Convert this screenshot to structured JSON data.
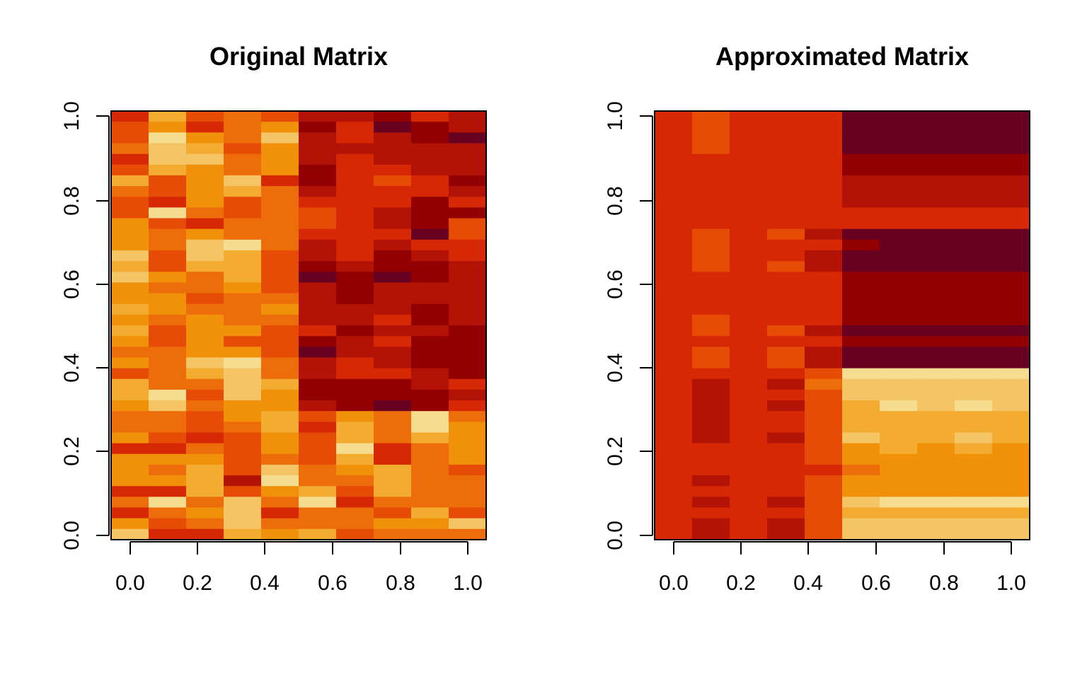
{
  "chart_data": [
    {
      "type": "heatmap",
      "title": "Original Matrix",
      "xlabel": "",
      "ylabel": "",
      "x_ticks": [
        "0.0",
        "0.2",
        "0.4",
        "0.6",
        "0.8",
        "1.0"
      ],
      "y_ticks": [
        "0.0",
        "0.2",
        "0.4",
        "0.6",
        "0.8",
        "1.0"
      ],
      "xlim": [
        0,
        1
      ],
      "ylim": [
        0,
        1
      ],
      "n_cols": 10,
      "n_rows": 40,
      "row_order": "top-to-bottom",
      "value_scale": "0 = darkest red, 9 = lightest yellow (heat.colors)",
      "matrix": [
        [
          3,
          7,
          4,
          5,
          4,
          2,
          2,
          1,
          3,
          2
        ],
        [
          4,
          6,
          3,
          5,
          6,
          1,
          3,
          0,
          1,
          2
        ],
        [
          4,
          9,
          6,
          5,
          8,
          2,
          3,
          2,
          1,
          0
        ],
        [
          5,
          8,
          7,
          4,
          6,
          2,
          2,
          2,
          2,
          2
        ],
        [
          3,
          8,
          8,
          5,
          6,
          2,
          3,
          2,
          2,
          2
        ],
        [
          4,
          7,
          6,
          5,
          6,
          1,
          3,
          3,
          2,
          2
        ],
        [
          7,
          4,
          6,
          8,
          3,
          1,
          3,
          4,
          3,
          1
        ],
        [
          5,
          4,
          6,
          7,
          5,
          2,
          3,
          3,
          3,
          2
        ],
        [
          4,
          3,
          6,
          4,
          5,
          3,
          3,
          3,
          1,
          3
        ],
        [
          4,
          9,
          5,
          4,
          5,
          4,
          3,
          2,
          1,
          1
        ],
        [
          6,
          4,
          3,
          5,
          5,
          4,
          3,
          2,
          1,
          4
        ],
        [
          6,
          5,
          6,
          5,
          5,
          3,
          3,
          3,
          0,
          4
        ],
        [
          6,
          5,
          8,
          9,
          5,
          2,
          3,
          2,
          3,
          3
        ],
        [
          8,
          4,
          8,
          7,
          4,
          2,
          3,
          1,
          2,
          3
        ],
        [
          7,
          4,
          7,
          7,
          4,
          1,
          2,
          1,
          1,
          2
        ],
        [
          8,
          6,
          5,
          7,
          4,
          0,
          1,
          0,
          1,
          2
        ],
        [
          6,
          5,
          5,
          6,
          4,
          2,
          1,
          2,
          2,
          2
        ],
        [
          6,
          6,
          4,
          5,
          5,
          2,
          1,
          2,
          2,
          2
        ],
        [
          7,
          6,
          5,
          5,
          6,
          2,
          2,
          2,
          1,
          2
        ],
        [
          6,
          5,
          6,
          5,
          5,
          2,
          2,
          3,
          1,
          2
        ],
        [
          7,
          4,
          6,
          6,
          4,
          3,
          1,
          2,
          2,
          1
        ],
        [
          6,
          4,
          6,
          4,
          4,
          1,
          2,
          3,
          1,
          1
        ],
        [
          5,
          5,
          6,
          6,
          4,
          0,
          2,
          2,
          1,
          1
        ],
        [
          6,
          5,
          8,
          9,
          5,
          2,
          3,
          2,
          1,
          1
        ],
        [
          4,
          5,
          7,
          8,
          5,
          2,
          3,
          3,
          2,
          1
        ],
        [
          7,
          5,
          5,
          8,
          7,
          1,
          1,
          1,
          2,
          3
        ],
        [
          7,
          9,
          4,
          8,
          6,
          1,
          1,
          1,
          1,
          2
        ],
        [
          6,
          8,
          5,
          6,
          6,
          2,
          1,
          0,
          1,
          3
        ],
        [
          5,
          5,
          4,
          6,
          7,
          4,
          6,
          5,
          9,
          5
        ],
        [
          5,
          5,
          4,
          5,
          7,
          3,
          7,
          5,
          9,
          6
        ],
        [
          6,
          4,
          3,
          4,
          6,
          4,
          7,
          5,
          7,
          6
        ],
        [
          3,
          3,
          5,
          4,
          6,
          4,
          9,
          3,
          5,
          6
        ],
        [
          6,
          6,
          6,
          4,
          5,
          4,
          7,
          3,
          5,
          6
        ],
        [
          6,
          5,
          7,
          4,
          8,
          5,
          6,
          7,
          5,
          4
        ],
        [
          6,
          6,
          7,
          2,
          9,
          5,
          5,
          7,
          5,
          5
        ],
        [
          3,
          3,
          7,
          4,
          6,
          7,
          4,
          7,
          5,
          5
        ],
        [
          5,
          9,
          5,
          8,
          5,
          9,
          3,
          5,
          5,
          5
        ],
        [
          3,
          5,
          6,
          8,
          3,
          5,
          5,
          4,
          7,
          4
        ],
        [
          6,
          4,
          5,
          8,
          5,
          5,
          5,
          6,
          6,
          8
        ],
        [
          8,
          3,
          3,
          7,
          6,
          7,
          4,
          5,
          5,
          5
        ]
      ]
    },
    {
      "type": "heatmap",
      "title": "Approximated Matrix",
      "xlabel": "",
      "ylabel": "",
      "x_ticks": [
        "0.0",
        "0.2",
        "0.4",
        "0.6",
        "0.8",
        "1.0"
      ],
      "y_ticks": [
        "0.0",
        "0.2",
        "0.4",
        "0.6",
        "0.8",
        "1.0"
      ],
      "xlim": [
        0,
        1
      ],
      "ylim": [
        0,
        1
      ],
      "n_cols": 10,
      "n_rows": 40,
      "row_order": "top-to-bottom",
      "value_scale": "0 = darkest red, 9 = lightest yellow (heat.colors)",
      "matrix": [
        [
          3,
          4,
          3,
          3,
          3,
          0,
          0,
          0,
          0,
          0
        ],
        [
          3,
          4,
          3,
          3,
          3,
          0,
          0,
          0,
          0,
          0
        ],
        [
          3,
          4,
          3,
          3,
          3,
          0,
          0,
          0,
          0,
          0
        ],
        [
          3,
          4,
          3,
          3,
          3,
          0,
          0,
          0,
          0,
          0
        ],
        [
          3,
          3,
          3,
          3,
          3,
          1,
          1,
          1,
          1,
          1
        ],
        [
          3,
          3,
          3,
          3,
          3,
          1,
          1,
          1,
          1,
          1
        ],
        [
          3,
          3,
          3,
          3,
          3,
          2,
          2,
          2,
          2,
          2
        ],
        [
          3,
          3,
          3,
          3,
          3,
          2,
          2,
          2,
          2,
          2
        ],
        [
          3,
          3,
          3,
          3,
          3,
          2,
          2,
          2,
          2,
          2
        ],
        [
          3,
          3,
          3,
          3,
          3,
          3,
          3,
          3,
          3,
          3
        ],
        [
          3,
          3,
          3,
          3,
          3,
          3,
          3,
          3,
          3,
          3
        ],
        [
          3,
          4,
          3,
          4,
          2,
          0,
          0,
          0,
          0,
          0
        ],
        [
          3,
          4,
          3,
          3,
          3,
          1,
          0,
          0,
          0,
          0
        ],
        [
          3,
          4,
          3,
          3,
          2,
          0,
          0,
          0,
          0,
          0
        ],
        [
          3,
          4,
          3,
          4,
          2,
          0,
          0,
          0,
          0,
          0
        ],
        [
          3,
          3,
          3,
          3,
          3,
          1,
          1,
          1,
          1,
          1
        ],
        [
          3,
          3,
          3,
          3,
          3,
          1,
          1,
          1,
          1,
          1
        ],
        [
          3,
          3,
          3,
          3,
          3,
          1,
          1,
          1,
          1,
          1
        ],
        [
          3,
          3,
          3,
          3,
          3,
          1,
          1,
          1,
          1,
          1
        ],
        [
          3,
          4,
          3,
          3,
          3,
          1,
          1,
          1,
          1,
          1
        ],
        [
          3,
          4,
          3,
          4,
          2,
          0,
          0,
          0,
          0,
          0
        ],
        [
          3,
          3,
          3,
          3,
          3,
          1,
          1,
          1,
          1,
          1
        ],
        [
          3,
          4,
          3,
          4,
          2,
          0,
          0,
          0,
          0,
          0
        ],
        [
          3,
          4,
          3,
          4,
          2,
          0,
          0,
          0,
          0,
          0
        ],
        [
          3,
          3,
          3,
          3,
          4,
          9,
          9,
          9,
          9,
          9
        ],
        [
          3,
          2,
          3,
          2,
          5,
          8,
          8,
          8,
          8,
          8
        ],
        [
          3,
          2,
          3,
          3,
          4,
          8,
          8,
          8,
          8,
          8
        ],
        [
          3,
          2,
          3,
          2,
          4,
          7,
          9,
          8,
          9,
          8
        ],
        [
          3,
          2,
          3,
          3,
          4,
          7,
          7,
          7,
          7,
          7
        ],
        [
          3,
          2,
          3,
          3,
          4,
          7,
          7,
          7,
          7,
          7
        ],
        [
          3,
          2,
          3,
          2,
          4,
          8,
          7,
          7,
          8,
          7
        ],
        [
          3,
          3,
          3,
          3,
          4,
          6,
          7,
          6,
          7,
          6
        ],
        [
          3,
          3,
          3,
          3,
          4,
          6,
          6,
          6,
          6,
          6
        ],
        [
          3,
          3,
          3,
          3,
          3,
          5,
          6,
          6,
          6,
          6
        ],
        [
          3,
          2,
          3,
          3,
          4,
          6,
          6,
          6,
          6,
          6
        ],
        [
          3,
          3,
          3,
          3,
          4,
          6,
          6,
          6,
          6,
          6
        ],
        [
          3,
          2,
          3,
          2,
          4,
          8,
          9,
          9,
          9,
          9
        ],
        [
          3,
          3,
          3,
          3,
          4,
          7,
          7,
          7,
          7,
          7
        ],
        [
          3,
          2,
          3,
          2,
          4,
          8,
          8,
          8,
          8,
          8
        ],
        [
          3,
          2,
          3,
          2,
          4,
          8,
          8,
          8,
          8,
          8
        ]
      ]
    }
  ],
  "colors": {
    "palette": [
      "#670021",
      "#930002",
      "#b21306",
      "#d72805",
      "#e74c07",
      "#ec6d0a",
      "#f09109",
      "#f3ab30",
      "#f4c465",
      "#f6dc8e",
      "#fdf5b8"
    ]
  }
}
